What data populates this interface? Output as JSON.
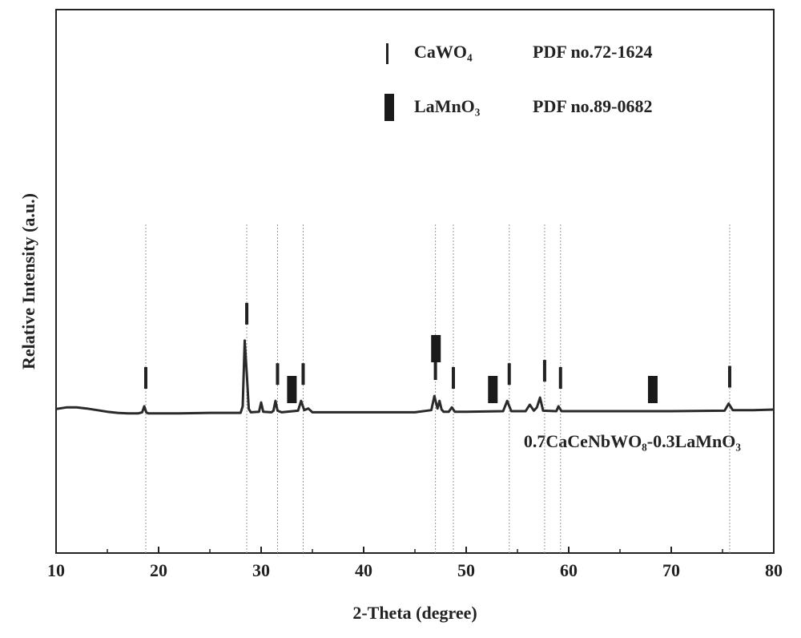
{
  "chart_data": {
    "type": "line",
    "x_label": "2-Theta (degree)",
    "y_label": "Relative Intensity (a.u.)",
    "xlim": [
      10,
      80
    ],
    "ylim": [
      0,
      100
    ],
    "xticks": [
      10,
      20,
      30,
      40,
      50,
      60,
      70,
      80
    ],
    "xminorticks": [
      15,
      25,
      35,
      45,
      55,
      65,
      75
    ],
    "x": [
      10,
      11,
      12,
      13,
      14,
      15,
      16,
      17,
      18,
      18.4,
      18.6,
      18.8,
      19,
      22,
      25,
      28,
      28.2,
      28.4,
      28.6,
      28.8,
      29,
      29.8,
      30,
      30.2,
      31,
      31.2,
      31.4,
      31.6,
      32,
      33.6,
      33.9,
      34.2,
      34.6,
      35,
      38,
      40,
      45,
      46.6,
      46.9,
      47.2,
      47.4,
      47.6,
      47.8,
      48.3,
      48.6,
      48.9,
      50,
      53.6,
      54,
      54.4,
      55.8,
      56.2,
      56.6,
      56.9,
      57.2,
      57.5,
      58.8,
      59,
      59.3,
      62,
      65,
      70,
      75.2,
      75.6,
      76,
      78,
      80
    ],
    "series": [
      {
        "name": "0.7CaCeNbWO₈-0.3LaMnO₃",
        "color": "#2a2a2a",
        "values": [
          26.5,
          26.8,
          26.8,
          26.6,
          26.3,
          26.0,
          25.8,
          25.7,
          25.7,
          25.9,
          27.0,
          25.9,
          25.7,
          25.7,
          25.8,
          25.8,
          27.0,
          39.1,
          33.0,
          26.5,
          25.9,
          26.0,
          27.7,
          26.0,
          25.9,
          26.2,
          28.0,
          26.2,
          25.9,
          26.2,
          28.0,
          26.3,
          26.6,
          25.9,
          25.9,
          25.9,
          25.9,
          26.3,
          28.9,
          26.6,
          28.0,
          26.4,
          26.0,
          26.0,
          26.8,
          26.0,
          26.0,
          26.1,
          28.0,
          26.1,
          26.1,
          27.3,
          26.2,
          26.8,
          28.6,
          26.2,
          26.1,
          27.0,
          26.1,
          26.1,
          26.1,
          26.1,
          26.2,
          27.5,
          26.3,
          26.3,
          26.4
        ]
      }
    ],
    "references": [
      {
        "name": "CaWO₄",
        "pdf": "PDF no.72-1624",
        "marker": "line",
        "color": "#222",
        "positions": [
          18.75,
          28.6,
          31.6,
          34.1,
          47.0,
          48.75,
          54.2,
          57.65,
          59.2,
          75.7
        ]
      },
      {
        "name": "LaMnO₃",
        "pdf": "PDF no.89-0682",
        "marker": "bar",
        "color": "#1a1a1a",
        "positions": [
          33.0,
          47.05,
          52.6,
          68.2
        ]
      }
    ]
  }
}
